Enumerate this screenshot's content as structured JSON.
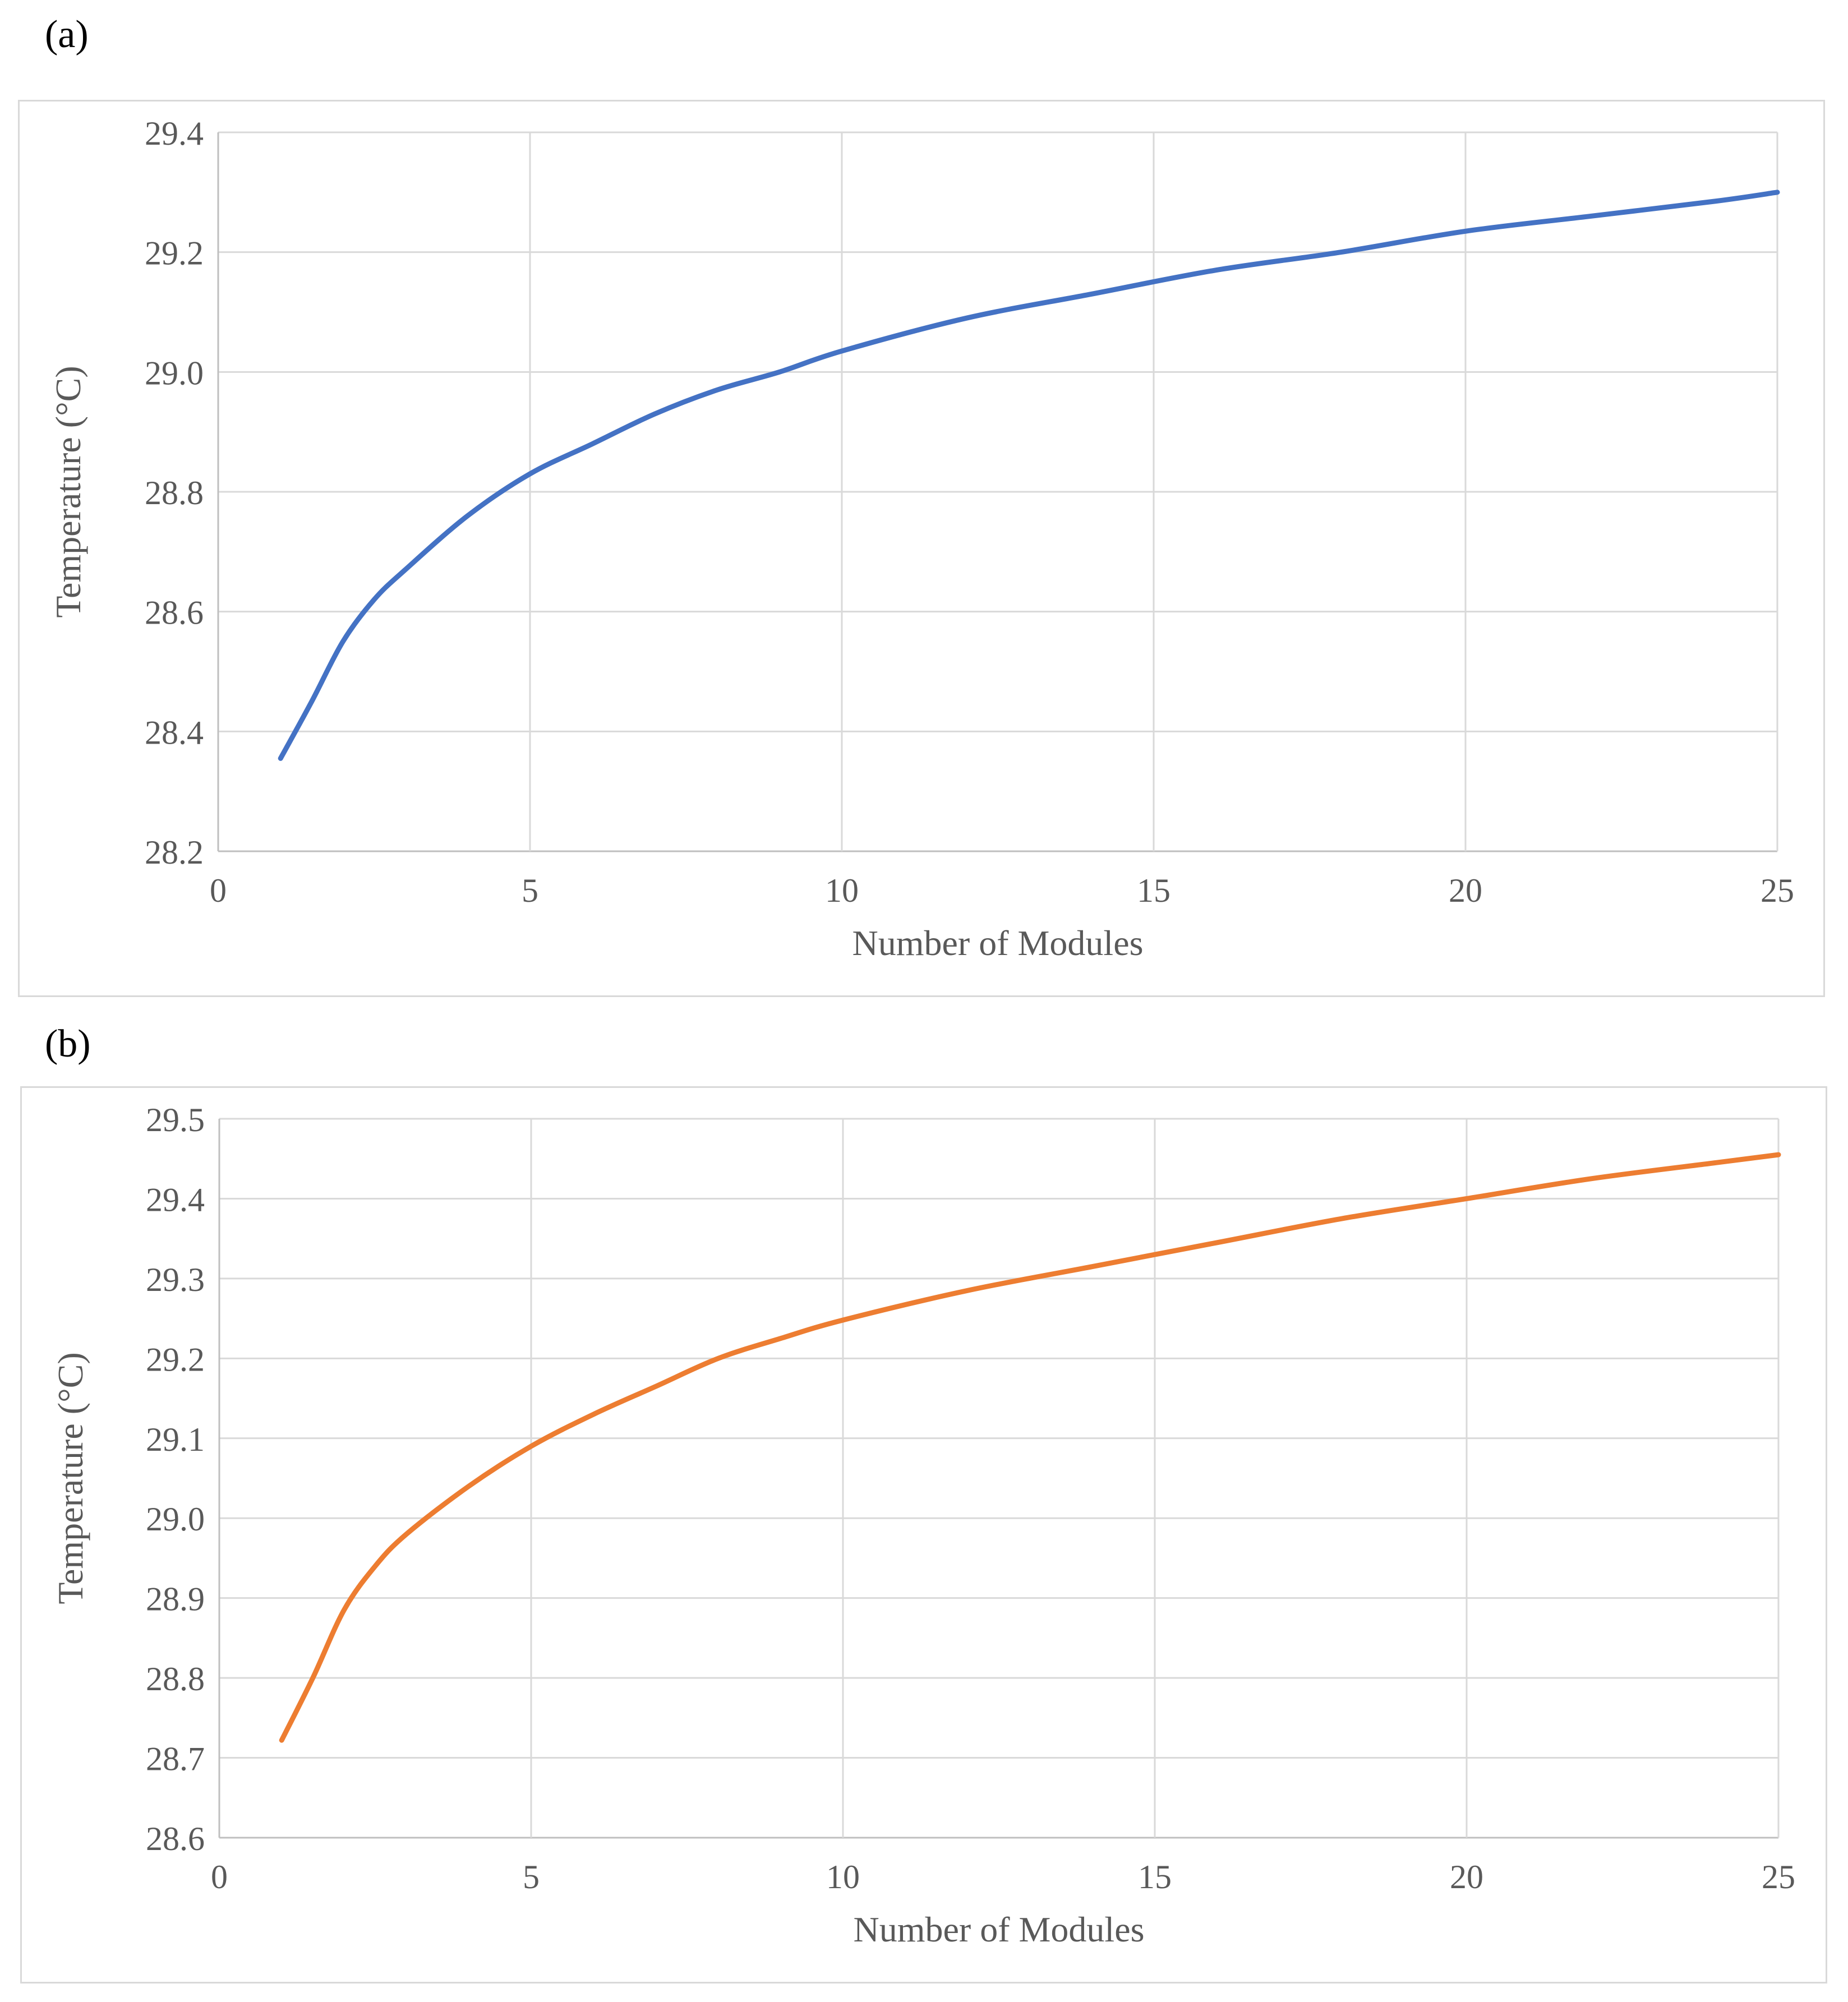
{
  "panels": [
    {
      "label": "(a)"
    },
    {
      "label": "(b)"
    }
  ],
  "chart_data": [
    {
      "type": "line",
      "title": "",
      "xlabel": "Number of Modules",
      "ylabel": "Temperature (°C)",
      "xlim": [
        0,
        25
      ],
      "ylim": [
        28.2,
        29.4
      ],
      "xticks": [
        "0",
        "5",
        "10",
        "15",
        "20",
        "25"
      ],
      "yticks": [
        "28.2",
        "28.4",
        "28.6",
        "28.8",
        "29.0",
        "29.2",
        "29.4"
      ],
      "grid": true,
      "color": "#4472c4",
      "series": [
        {
          "x": [
            1,
            1.5,
            2,
            2.5,
            3,
            4,
            5,
            6,
            7,
            8,
            9,
            10,
            12,
            14,
            16,
            18,
            20,
            22,
            24,
            25
          ],
          "y": [
            28.355,
            28.45,
            28.55,
            28.62,
            28.67,
            28.76,
            28.83,
            28.88,
            28.93,
            28.97,
            29.0,
            29.035,
            29.09,
            29.13,
            29.17,
            29.2,
            29.235,
            29.26,
            29.285,
            29.3
          ]
        }
      ]
    },
    {
      "type": "line",
      "title": "",
      "xlabel": "Number of Modules",
      "ylabel": "Temperature (°C)",
      "xlim": [
        0,
        25
      ],
      "ylim": [
        28.6,
        29.5
      ],
      "xticks": [
        "0",
        "5",
        "10",
        "15",
        "20",
        "25"
      ],
      "yticks": [
        "28.6",
        "28.7",
        "28.8",
        "28.9",
        "29.0",
        "29.1",
        "29.2",
        "29.3",
        "29.4",
        "29.5"
      ],
      "grid": true,
      "color": "#ed7d31",
      "series": [
        {
          "x": [
            1,
            1.5,
            2,
            2.5,
            3,
            4,
            5,
            6,
            7,
            8,
            9,
            10,
            12,
            14,
            16,
            18,
            20,
            22,
            24,
            25
          ],
          "y": [
            28.722,
            28.8,
            28.885,
            28.94,
            28.98,
            29.04,
            29.09,
            29.13,
            29.165,
            29.2,
            29.225,
            29.248,
            29.285,
            29.315,
            29.345,
            29.375,
            29.4,
            29.425,
            29.445,
            29.455
          ]
        }
      ]
    }
  ]
}
